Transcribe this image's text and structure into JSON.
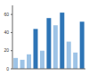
{
  "chart_data": {
    "type": "bar",
    "categories": [
      null,
      null,
      null,
      null,
      null,
      null,
      null,
      null,
      null,
      null,
      null
    ],
    "values": [
      12,
      10,
      16,
      44,
      20,
      56,
      48,
      62,
      30,
      18,
      52
    ],
    "colors": [
      "#9dc3e6",
      "#9dc3e6",
      "#9dc3e6",
      "#2e75b6",
      "#9dc3e6",
      "#2e75b6",
      "#9dc3e6",
      "#2e75b6",
      "#9dc3e6",
      "#9dc3e6",
      "#2e75b6"
    ],
    "ylim": [
      0,
      70
    ],
    "yticks": [
      0,
      20,
      40,
      60
    ],
    "grid": false
  }
}
